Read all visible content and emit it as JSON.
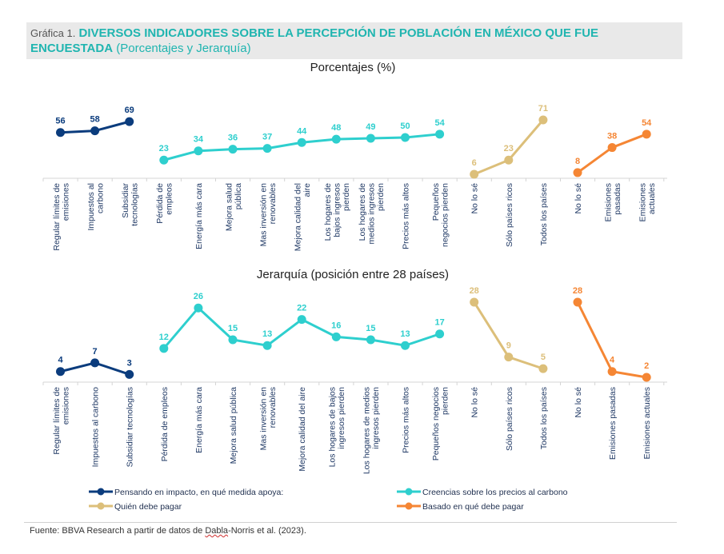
{
  "header": {
    "prefix": "Gráfica 1.",
    "title_bold_line1": "DIVERSOS INDICADORES SOBRE LA PERCEPCIÓN DE POBLACIÓN EN MÉXICO QUE FUE",
    "title_bold_line2": "ENCUESTADA",
    "title_suffix": "(Porcentajes  y Jerarquía)",
    "accent_color": "#20b5b0"
  },
  "chart_data": [
    {
      "type": "line",
      "title": "Porcentajes (%)",
      "xlabel": "",
      "ylabel": "",
      "ylim": [
        0,
        75
      ],
      "grid": false,
      "categories": [
        "Regular límites de emisiones",
        "Impuestos al carbono",
        "Subsidiar tecnologías",
        "Pérdida de empleos",
        "Energía más cara",
        "Mejora salud pública",
        "Mas inversión en renovables",
        "Mejora calidad del aire",
        "Los hogares de bajos ingresos pierden",
        "Los hogares de medios ingresos pierden",
        "Precios más altos",
        "Pequeños negocios pierden",
        "No lo sé",
        "Sólo países ricos",
        "Todos los países",
        "No lo sé",
        "Emisiones pasadas",
        "Emisiones actuales"
      ],
      "tick_labels": [
        [
          "Regular límites de",
          "emisiones"
        ],
        [
          "Impuestos al",
          "carbono"
        ],
        [
          "Subsidiar",
          "tecnologías"
        ],
        [
          "Pérdida de",
          "empleos"
        ],
        [
          "Energía más cara"
        ],
        [
          "Mejora salud",
          "pública"
        ],
        [
          "Mas inversión en",
          "renovables"
        ],
        [
          "Mejora calidad del",
          "aire"
        ],
        [
          "Los hogares de",
          "bajos ingresos",
          "pierden"
        ],
        [
          "Los hogares de",
          "medios ingresos",
          "pierden"
        ],
        [
          "Precios más  altos"
        ],
        [
          "Pequeños",
          "negocios pierden"
        ],
        [
          "No lo sé"
        ],
        [
          "Sólo países ricos"
        ],
        [
          "Todos los países"
        ],
        [
          "No lo sé"
        ],
        [
          "Emisiones",
          "pasadas"
        ],
        [
          "Emisiones",
          "actuales"
        ]
      ],
      "series": [
        {
          "name": "Pensando en impacto, en qué medida apoya:",
          "color": "#0b3c7d",
          "start_index": 0,
          "values": [
            56,
            58,
            69
          ]
        },
        {
          "name": "Creencias sobre los precios al carbono",
          "color": "#2ecfce",
          "start_index": 3,
          "values": [
            23,
            34,
            36,
            37,
            44,
            48,
            49,
            50,
            54
          ]
        },
        {
          "name": "Quién debe pagar",
          "color": "#dcbf7a",
          "start_index": 12,
          "values": [
            6,
            23,
            71
          ]
        },
        {
          "name": "Basado en qué debe pagar",
          "color": "#f58634",
          "start_index": 15,
          "values": [
            8,
            38,
            54
          ]
        }
      ]
    },
    {
      "type": "line",
      "title": "Jerarquía (posición entre 28 países)",
      "xlabel": "",
      "ylabel": "",
      "ylim": [
        0,
        30
      ],
      "grid": false,
      "categories": [
        "Regular límites de emisiones",
        "Impuestos al carbono",
        "Subsidiar tecnologías",
        "Pérdida de empleos",
        "Energía más cara",
        "Mejora salud pública",
        "Mas inversión en renovables",
        "Mejora calidad del aire",
        "Los hogares de bajos ingresos pierden",
        "Los hogares de medios ingresos pierden",
        "Precios más altos",
        "Pequeños negocios pierden",
        "No lo sé",
        "Sólo países ricos",
        "Todos los países",
        "No lo sé",
        "Emisiones pasadas",
        "Emisiones actuales"
      ],
      "tick_labels": [
        [
          "Regular límites de",
          "emisiones"
        ],
        [
          "Impuestos al carbono"
        ],
        [
          "Subsidiar tecnologías"
        ],
        [
          "Pérdida de empleos"
        ],
        [
          "Energía más cara"
        ],
        [
          "Mejora salud pública"
        ],
        [
          "Mas inversión en",
          "renovables"
        ],
        [
          "Mejora calidad del aire"
        ],
        [
          "Los hogares de bajos",
          "ingresos pierden"
        ],
        [
          "Los hogares de medios",
          "ingresos pierden"
        ],
        [
          "Precios más  altos"
        ],
        [
          "Pequeños negocios",
          "pierden"
        ],
        [
          "No lo sé"
        ],
        [
          "Sólo países ricos"
        ],
        [
          "Todos los países"
        ],
        [
          "No lo sé"
        ],
        [
          "Emisiones pasadas"
        ],
        [
          "Emisiones actuales"
        ]
      ],
      "series": [
        {
          "name": "Pensando en impacto, en qué medida apoya:",
          "color": "#0b3c7d",
          "start_index": 0,
          "values": [
            4,
            7,
            3
          ]
        },
        {
          "name": "Creencias sobre los precios al carbono",
          "color": "#2ecfce",
          "start_index": 3,
          "values": [
            12,
            26,
            15,
            13,
            22,
            16,
            15,
            13,
            17
          ]
        },
        {
          "name": "Quién debe pagar",
          "color": "#dcbf7a",
          "start_index": 12,
          "values": [
            28,
            9,
            5
          ]
        },
        {
          "name": "Basado en qué debe pagar",
          "color": "#f58634",
          "start_index": 15,
          "values": [
            28,
            4,
            2
          ]
        }
      ]
    }
  ],
  "legend": {
    "placement": "bottom",
    "items": [
      {
        "label": "Pensando en impacto, en qué medida apoya:",
        "color": "#0b3c7d"
      },
      {
        "label": "Creencias sobre los precios al carbono",
        "color": "#2ecfce"
      },
      {
        "label": "Quién debe pagar",
        "color": "#dcbf7a"
      },
      {
        "label": "Basado en qué debe pagar",
        "color": "#f58634"
      }
    ]
  },
  "source": {
    "before": "Fuente: BBVA Research a partir de datos de ",
    "flagged_word": "Dabla",
    "after": "-Norris et al. (2023)."
  }
}
